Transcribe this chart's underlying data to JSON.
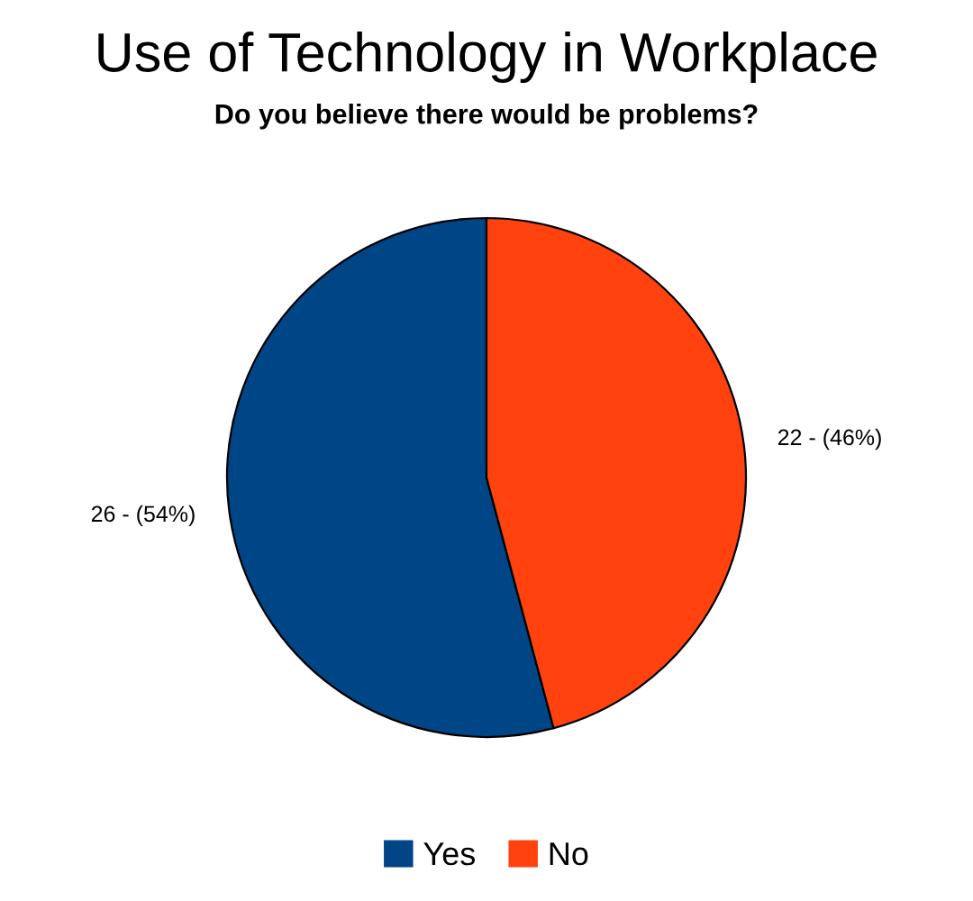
{
  "chart_data": {
    "type": "pie",
    "title": "Use of Technology in Workplace",
    "subtitle": "Do you believe there would be problems?",
    "categories": [
      "Yes",
      "No"
    ],
    "values": [
      26,
      22
    ],
    "colors": [
      "#004586",
      "#ff420e"
    ],
    "value_labels": [
      "26 - (54%)",
      "22 - (46%)"
    ],
    "legend": "bottom"
  }
}
